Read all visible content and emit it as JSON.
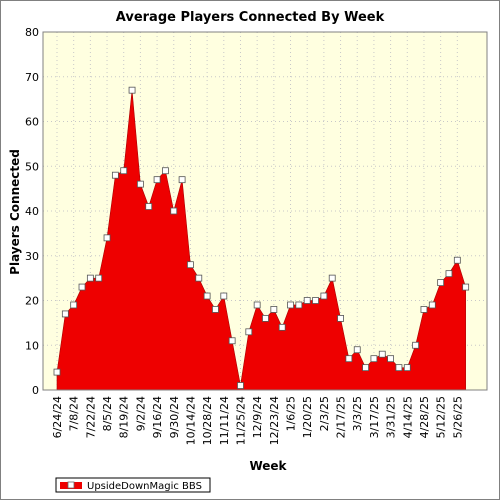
{
  "chart_data": {
    "type": "area",
    "title": "Average Players Connected By Week",
    "xlabel": "Week",
    "ylabel": "Players Connected",
    "ylim": [
      0,
      80
    ],
    "yticks": [
      0,
      10,
      20,
      30,
      40,
      50,
      60,
      70,
      80
    ],
    "grid": true,
    "legend": "bottom-left",
    "x_tick_labels": [
      "6/24/24",
      "7/8/24",
      "7/22/24",
      "8/5/24",
      "8/19/24",
      "9/2/24",
      "9/16/24",
      "9/30/24",
      "10/14/24",
      "10/28/24",
      "11/11/24",
      "11/25/24",
      "12/9/24",
      "12/23/24",
      "1/6/25",
      "1/20/25",
      "2/3/25",
      "2/17/25",
      "3/3/25",
      "3/17/25",
      "3/31/25",
      "4/14/25",
      "4/28/25",
      "5/12/25",
      "5/26/25"
    ],
    "series": [
      {
        "name": "UpsideDownMagic BBS",
        "color": "#ee0000",
        "x": [
          "6/24/24",
          "7/1/24",
          "7/8/24",
          "7/15/24",
          "7/22/24",
          "7/29/24",
          "8/5/24",
          "8/12/24",
          "8/19/24",
          "8/26/24",
          "9/2/24",
          "9/9/24",
          "9/16/24",
          "9/23/24",
          "9/30/24",
          "10/7/24",
          "10/14/24",
          "10/21/24",
          "10/28/24",
          "11/4/24",
          "11/11/24",
          "11/18/24",
          "11/25/24",
          "12/2/24",
          "12/9/24",
          "12/16/24",
          "12/23/24",
          "12/30/24",
          "1/6/25",
          "1/13/25",
          "1/20/25",
          "1/27/25",
          "2/3/25",
          "2/10/25",
          "2/17/25",
          "2/24/25",
          "3/3/25",
          "3/10/25",
          "3/17/25",
          "3/24/25",
          "3/31/25",
          "4/7/25",
          "4/14/25",
          "4/21/25",
          "4/28/25",
          "5/5/25",
          "5/12/25",
          "5/19/25",
          "5/26/25",
          "6/2/25"
        ],
        "values": [
          4,
          17,
          19,
          23,
          25,
          25,
          34,
          48,
          49,
          67,
          46,
          41,
          47,
          49,
          40,
          47,
          28,
          25,
          21,
          18,
          21,
          11,
          1,
          13,
          19,
          16,
          18,
          14,
          19,
          19,
          20,
          20,
          21,
          25,
          16,
          7,
          9,
          5,
          7,
          8,
          7,
          5,
          5,
          10,
          18,
          19,
          24,
          26,
          29,
          23
        ]
      }
    ]
  }
}
